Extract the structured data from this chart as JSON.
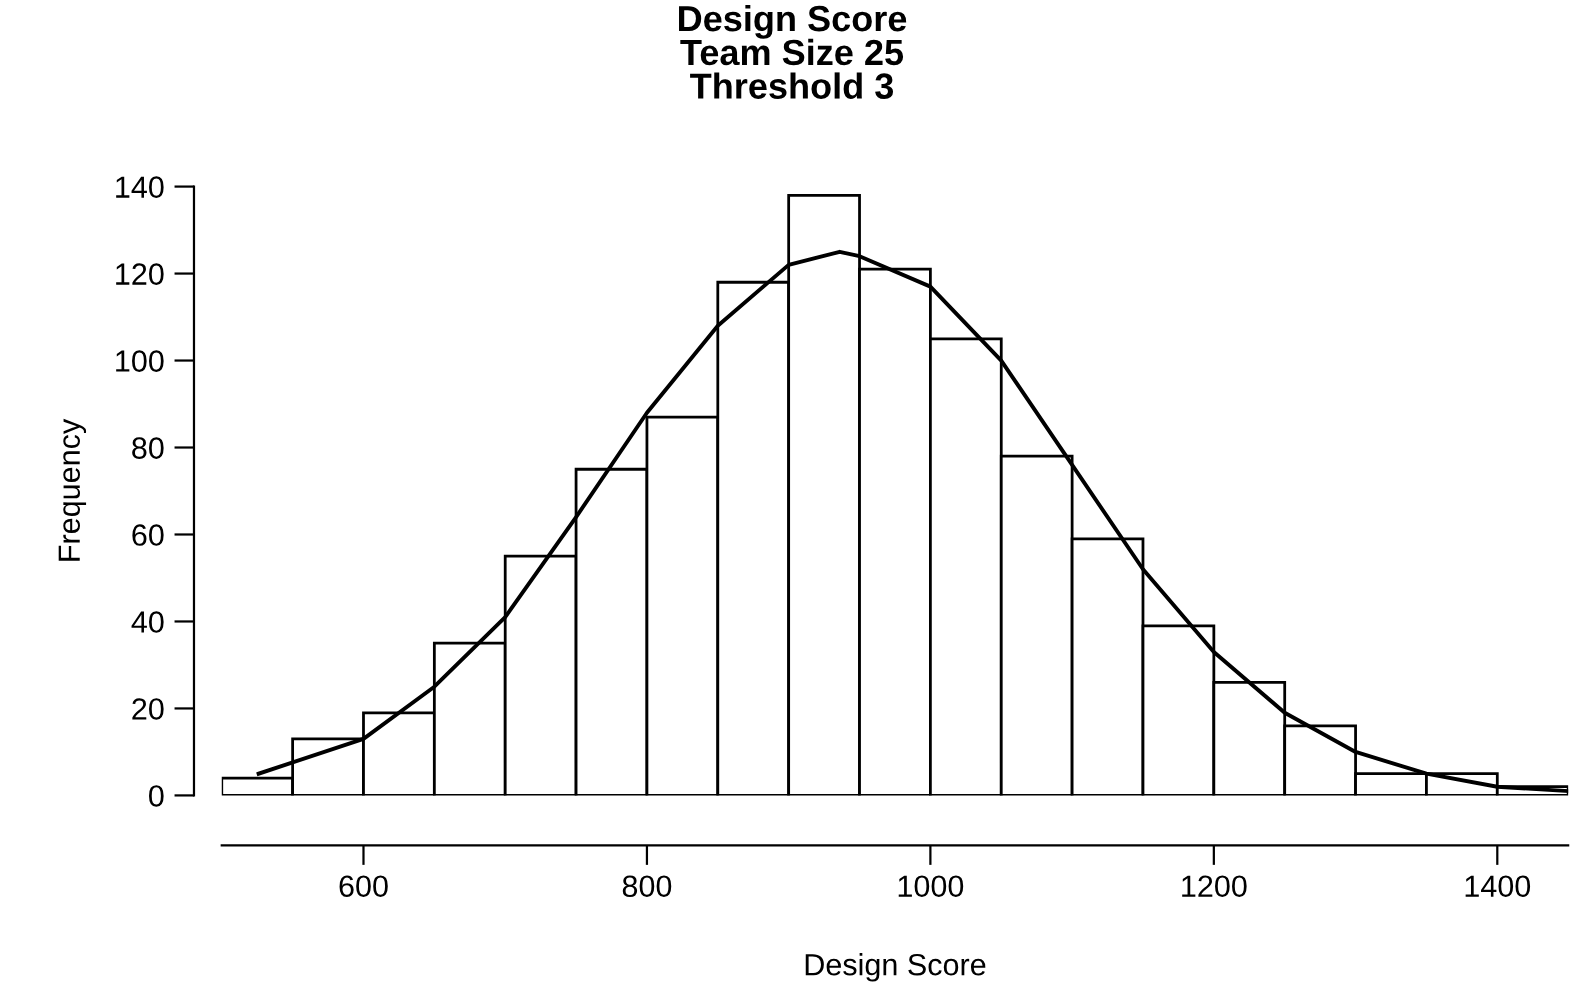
{
  "chart_data": {
    "type": "histogram",
    "title": "Design Score\nTeam Size 25\nThreshold 3",
    "xlabel": "Design Score",
    "ylabel": "Frequency",
    "series": [
      {
        "color": "#ffffff",
        "bins": [
          500,
          550,
          600,
          650,
          700,
          750,
          800,
          850,
          900,
          950,
          1000,
          1050,
          1100,
          1150,
          1200,
          1250,
          1300,
          1350,
          1400,
          1450
        ],
        "values": [
          4,
          13,
          19,
          35,
          55,
          75,
          87,
          118,
          138,
          121,
          105,
          78,
          59,
          39,
          26,
          16,
          5,
          5,
          2
        ]
      },
      {
        "type": "line",
        "color": "#000000",
        "x": [
          526,
          600,
          650,
          700,
          750,
          800,
          850,
          900,
          936,
          950,
          1000,
          1050,
          1100,
          1150,
          1200,
          1250,
          1300,
          1350,
          1400,
          1450
        ],
        "values": [
          5,
          13,
          25,
          41,
          64,
          88,
          108,
          122,
          125,
          124,
          117,
          100,
          76,
          52,
          33,
          19,
          10,
          5,
          2,
          1
        ]
      }
    ],
    "xlim": [
      500,
      1450
    ],
    "ylim": [
      0,
      140
    ],
    "xticks": [
      600,
      800,
      1000,
      1200,
      1400
    ],
    "yticks": [
      0,
      20,
      40,
      60,
      80,
      100,
      120,
      140
    ],
    "grid": false,
    "legend": false
  }
}
